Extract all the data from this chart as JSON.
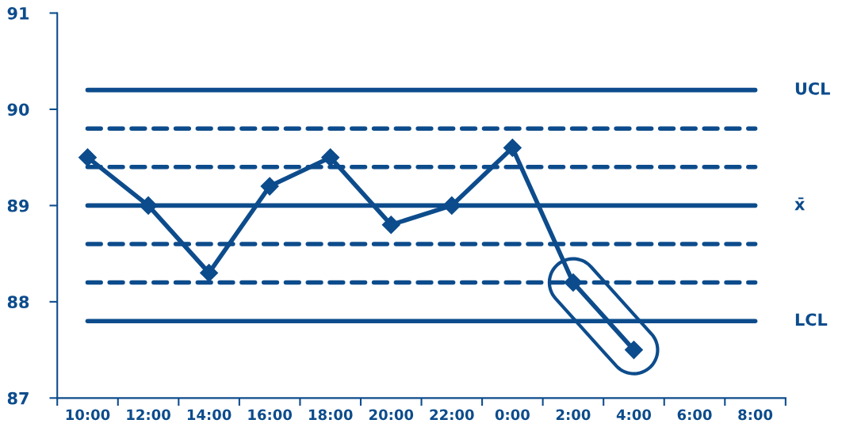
{
  "chart_data": {
    "type": "line",
    "categories": [
      "10:00",
      "12:00",
      "14:00",
      "16:00",
      "18:00",
      "20:00",
      "22:00",
      "0:00",
      "2:00",
      "4:00",
      "6:00",
      "8:00"
    ],
    "series": [
      {
        "color": "#0d4c8c",
        "values": [
          89.5,
          89.0,
          88.3,
          89.2,
          89.5,
          88.8,
          89.0,
          89.6,
          88.2,
          87.5,
          null,
          null
        ]
      }
    ],
    "marker": "diamond",
    "line_style": "solid",
    "ylim": [
      87,
      91
    ],
    "yticks": [
      87,
      88,
      89,
      90,
      91
    ],
    "grid": false,
    "legend": false,
    "ref_lines": [
      {
        "axis": "y",
        "value": 90.2,
        "label": "UCL",
        "color": "#0d4c8c",
        "line_style": "solid"
      },
      {
        "axis": "y",
        "value": 89.8,
        "label": null,
        "color": "#0d4c8c",
        "line_style": "dashed"
      },
      {
        "axis": "y",
        "value": 89.4,
        "label": null,
        "color": "#0d4c8c",
        "line_style": "dashed"
      },
      {
        "axis": "y",
        "value": 89.0,
        "label": "x̄",
        "color": "#0d4c8c",
        "line_style": "solid"
      },
      {
        "axis": "y",
        "value": 88.6,
        "label": null,
        "color": "#0d4c8c",
        "line_style": "dashed"
      },
      {
        "axis": "y",
        "value": 88.2,
        "label": null,
        "color": "#0d4c8c",
        "line_style": "dashed"
      },
      {
        "axis": "y",
        "value": 87.8,
        "label": "LCL",
        "color": "#0d4c8c",
        "line_style": "solid"
      }
    ]
  }
}
